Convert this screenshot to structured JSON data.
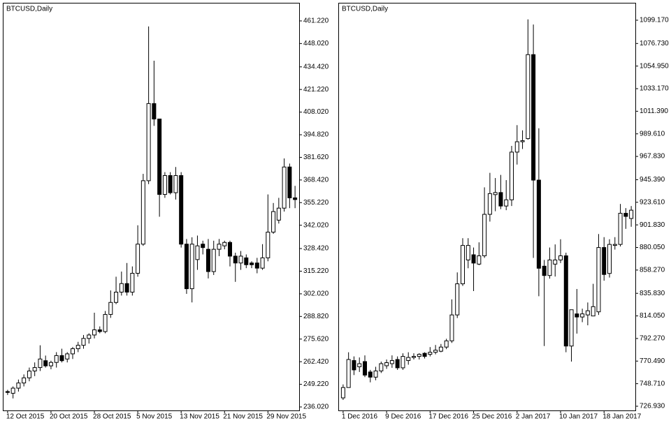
{
  "chart_data": [
    {
      "type": "candlestick",
      "title": "BTCUSD,Daily",
      "categories": [
        "12 Oct 2015",
        null,
        null,
        null,
        null,
        null,
        null,
        null,
        "20 Oct 2015",
        null,
        null,
        null,
        null,
        null,
        null,
        null,
        "28 Oct 2015",
        null,
        null,
        null,
        null,
        null,
        null,
        null,
        "5 Nov 2015",
        null,
        null,
        null,
        null,
        null,
        null,
        null,
        "13 Nov 2015",
        null,
        null,
        null,
        null,
        null,
        null,
        null,
        "21 Nov 2015",
        null,
        null,
        null,
        null,
        null,
        null,
        null,
        "29 Nov 2015",
        null,
        null,
        null,
        null,
        null
      ],
      "open": [
        245,
        244,
        247,
        250,
        253,
        257,
        259,
        263,
        260,
        262,
        266,
        264,
        267,
        270,
        272,
        276,
        278,
        281,
        280,
        290,
        297,
        303,
        308,
        303,
        314,
        331,
        368,
        413,
        404,
        360,
        371,
        361,
        371,
        331,
        305,
        322,
        331,
        328,
        315,
        328,
        330,
        332,
        324,
        320,
        323,
        320,
        320,
        317,
        323,
        338,
        345,
        352,
        376,
        358
      ],
      "high": [
        246,
        248,
        252,
        255,
        259,
        262,
        272,
        266,
        263,
        268,
        270,
        268,
        271,
        274,
        278,
        279,
        291,
        283,
        292,
        304,
        312,
        315,
        320,
        318,
        342,
        372,
        458,
        438,
        404,
        373,
        373,
        376,
        373,
        334,
        335,
        336,
        333,
        334,
        333,
        334,
        333,
        333,
        326,
        327,
        325,
        321,
        323,
        331,
        360,
        355,
        358,
        381,
        378,
        365
      ],
      "low": [
        243,
        241,
        245,
        248,
        251,
        254,
        257,
        259,
        258,
        259,
        262,
        262,
        264,
        268,
        270,
        273,
        276,
        279,
        279,
        288,
        296,
        301,
        301,
        301,
        312,
        330,
        366,
        400,
        347,
        358,
        360,
        357,
        329,
        302,
        297,
        316,
        325,
        311,
        313,
        324,
        328,
        318,
        309,
        316,
        317,
        317,
        314,
        316,
        321,
        337,
        343,
        350,
        352,
        352
      ],
      "close": [
        244.5,
        247,
        250,
        253,
        257,
        259,
        264,
        260,
        262,
        266,
        263,
        267,
        270,
        272,
        276,
        278,
        281,
        280,
        290,
        297,
        303,
        308,
        303,
        314,
        331,
        368,
        413,
        404,
        360,
        371,
        361,
        371,
        331,
        305,
        331,
        330,
        329,
        315,
        328,
        331,
        332,
        324,
        320,
        324,
        319,
        319,
        317,
        323,
        338,
        350,
        352,
        376,
        358,
        357
      ],
      "up_color": "#ffffff",
      "down_color": "#000000",
      "ylim": [
        233.99,
        471.38
      ],
      "yticks": [
        {
          "value": 236.02,
          "label": "236.020"
        },
        {
          "value": 249.22,
          "label": "249.220"
        },
        {
          "value": 262.42,
          "label": "262.420"
        },
        {
          "value": 275.62,
          "label": "275.620"
        },
        {
          "value": 288.82,
          "label": "288.820"
        },
        {
          "value": 302.02,
          "label": "302.020"
        },
        {
          "value": 315.22,
          "label": "315.220"
        },
        {
          "value": 328.42,
          "label": "328.420"
        },
        {
          "value": 342.02,
          "label": "342.020"
        },
        {
          "value": 355.22,
          "label": "355.220"
        },
        {
          "value": 368.42,
          "label": "368.420"
        },
        {
          "value": 381.62,
          "label": "381.620"
        },
        {
          "value": 394.82,
          "label": "394.820"
        },
        {
          "value": 408.02,
          "label": "408.020"
        },
        {
          "value": 421.22,
          "label": "421.220"
        },
        {
          "value": 434.42,
          "label": "434.420"
        },
        {
          "value": 448.02,
          "label": "448.020"
        },
        {
          "value": 461.22,
          "label": "461.220"
        }
      ]
    },
    {
      "type": "candlestick",
      "title": "BTCUSD,Daily",
      "categories": [
        "1 Dec 2016",
        null,
        null,
        null,
        null,
        null,
        null,
        null,
        "9 Dec 2016",
        null,
        null,
        null,
        null,
        null,
        null,
        null,
        "17 Dec 2016",
        null,
        null,
        null,
        null,
        null,
        null,
        null,
        "25 Dec 2016",
        null,
        null,
        null,
        null,
        null,
        null,
        null,
        "2 Jan 2017",
        null,
        null,
        null,
        null,
        null,
        null,
        null,
        "10 Jan 2017",
        null,
        null,
        null,
        null,
        null,
        null,
        null,
        "18 Jan 2017",
        null,
        null,
        null,
        null,
        null
      ],
      "open": [
        735,
        745,
        771,
        765,
        770,
        760,
        755,
        761,
        766,
        768,
        772,
        764,
        771,
        774,
        775,
        778,
        777,
        779,
        780,
        784,
        790,
        815,
        845,
        868,
        873,
        864,
        872,
        912,
        931,
        933,
        920,
        926,
        972,
        982,
        985,
        1066,
        945,
        862,
        853,
        864,
        868,
        872,
        785,
        816,
        813,
        815,
        814,
        818,
        880,
        855,
        882,
        883,
        913,
        908
      ],
      "high": [
        748,
        779,
        775,
        774,
        776,
        762,
        765,
        770,
        772,
        776,
        775,
        778,
        779,
        778,
        778,
        779,
        784,
        786,
        787,
        792,
        830,
        856,
        889,
        889,
        880,
        885,
        938,
        952,
        947,
        950,
        945,
        978,
        998,
        993,
        1100,
        1095,
        995,
        868,
        880,
        883,
        888,
        875,
        820,
        840,
        821,
        827,
        845,
        893,
        890,
        888,
        890,
        922,
        918,
        920
      ],
      "low": [
        733,
        745,
        757,
        760,
        755,
        750,
        752,
        759,
        763,
        764,
        762,
        762,
        767,
        772,
        772,
        773,
        775,
        777,
        779,
        782,
        788,
        812,
        843,
        860,
        838,
        863,
        870,
        905,
        915,
        917,
        916,
        920,
        960,
        975,
        984,
        870,
        833,
        785,
        850,
        852,
        865,
        779,
        770,
        797,
        808,
        805,
        816,
        815,
        848,
        851,
        878,
        881,
        898,
        900
      ],
      "close": [
        745,
        772,
        762,
        768,
        757,
        755,
        761,
        768,
        769,
        771,
        764,
        775,
        774,
        775,
        777,
        775,
        779,
        781,
        784,
        790,
        815,
        845,
        882,
        882,
        865,
        872,
        912,
        932,
        933,
        920,
        926,
        972,
        982,
        983,
        1066,
        945,
        860,
        853,
        868,
        868,
        872,
        785,
        820,
        813,
        816,
        819,
        823,
        880,
        854,
        883,
        883,
        913,
        910,
        916
      ],
      "up_color": "#ffffff",
      "down_color": "#000000",
      "ylim": [
        722.9,
        1115.3
      ],
      "yticks": [
        {
          "value": 726.93,
          "label": "726.930"
        },
        {
          "value": 748.71,
          "label": "748.710"
        },
        {
          "value": 770.49,
          "label": "770.490"
        },
        {
          "value": 792.27,
          "label": "792.270"
        },
        {
          "value": 814.05,
          "label": "814.050"
        },
        {
          "value": 835.83,
          "label": "835.830"
        },
        {
          "value": 858.27,
          "label": "858.270"
        },
        {
          "value": 880.05,
          "label": "880.050"
        },
        {
          "value": 901.83,
          "label": "901.830"
        },
        {
          "value": 923.61,
          "label": "923.610"
        },
        {
          "value": 945.39,
          "label": "945.390"
        },
        {
          "value": 967.83,
          "label": "967.830"
        },
        {
          "value": 989.61,
          "label": "989.610"
        },
        {
          "value": 1011.39,
          "label": "1011.390"
        },
        {
          "value": 1033.17,
          "label": "1033.170"
        },
        {
          "value": 1054.95,
          "label": "1054.950"
        },
        {
          "value": 1076.73,
          "label": "1076.730"
        },
        {
          "value": 1099.17,
          "label": "1099.170"
        }
      ]
    }
  ]
}
